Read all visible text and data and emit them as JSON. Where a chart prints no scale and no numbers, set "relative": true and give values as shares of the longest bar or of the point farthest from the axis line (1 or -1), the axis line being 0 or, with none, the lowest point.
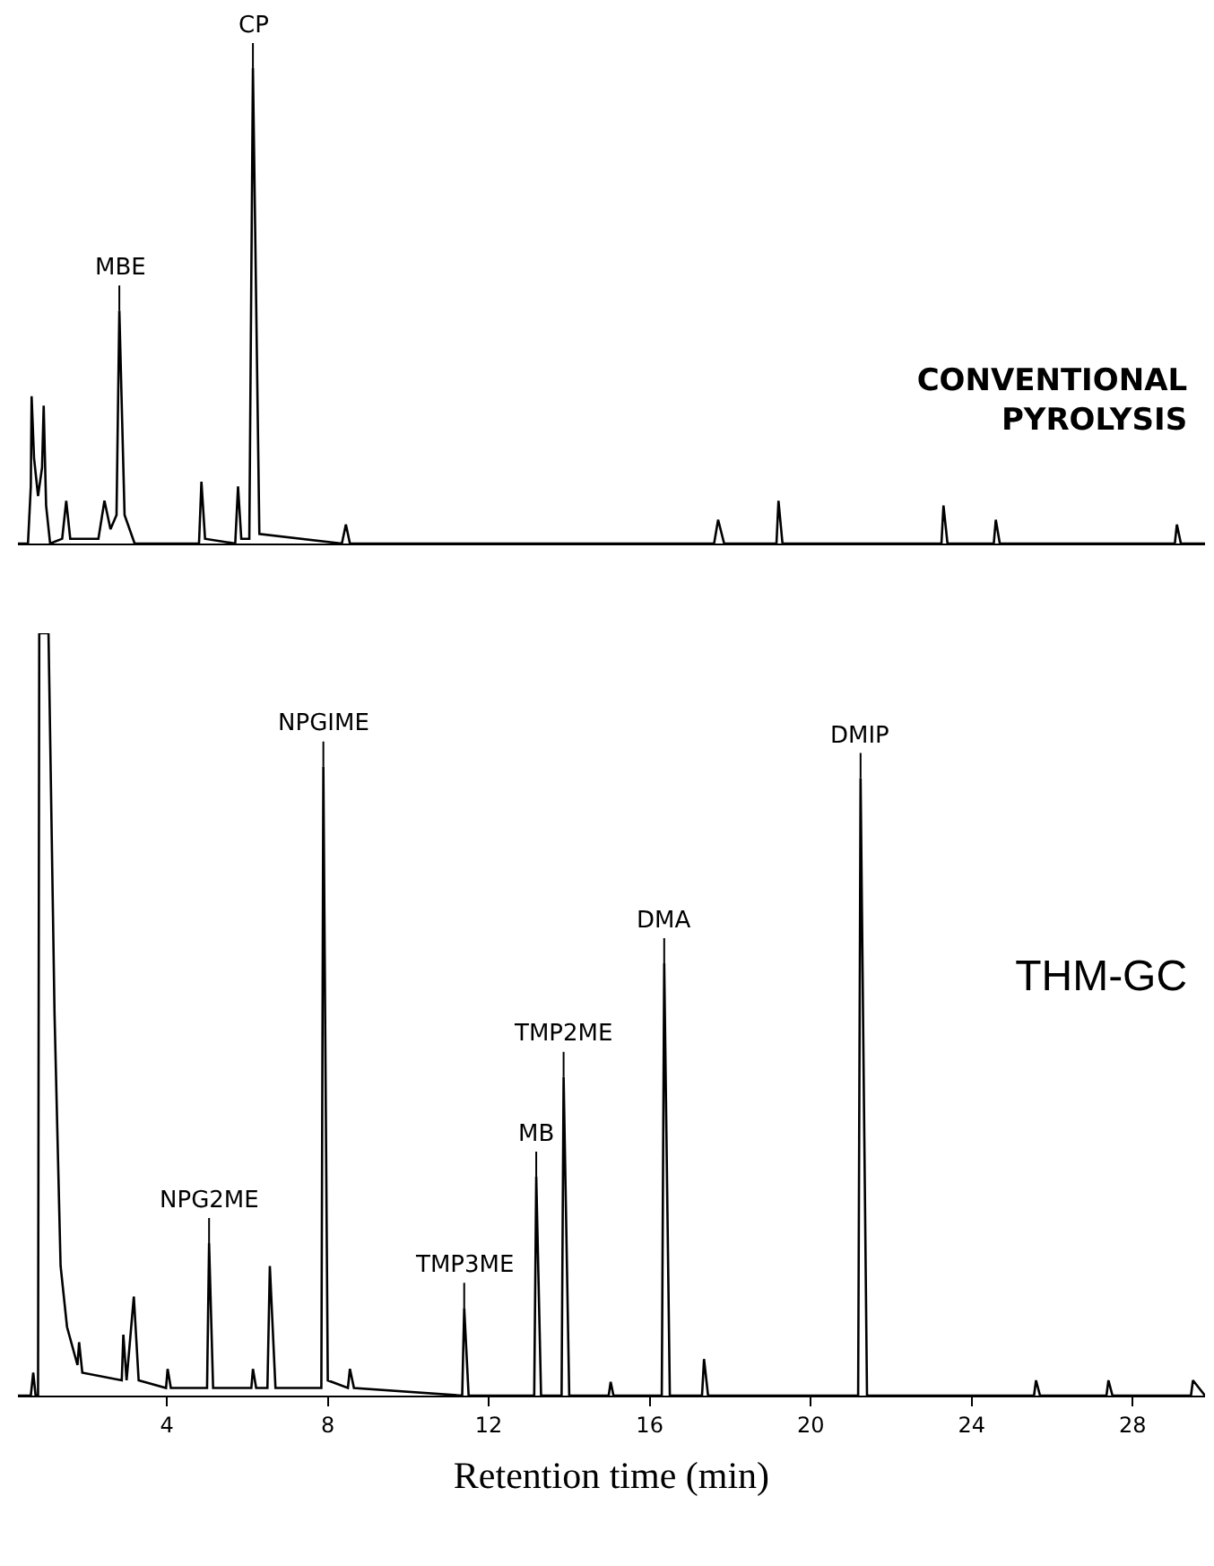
{
  "chart_data": [
    {
      "type": "line",
      "title": "CONVENTIONAL\nPYROLYSIS",
      "relative": true,
      "tick_labels": false,
      "grid": false,
      "marker": "none",
      "line_style": "solid",
      "xlim": [
        0.3,
        29.8
      ],
      "x": [
        0.3,
        0.55,
        0.62,
        0.64,
        0.7,
        0.8,
        0.9,
        0.94,
        1.0,
        1.1,
        1.4,
        1.5,
        1.6,
        2.3,
        2.45,
        2.6,
        2.75,
        2.82,
        2.95,
        3.2,
        4.8,
        4.86,
        4.95,
        5.7,
        5.77,
        5.85,
        6.05,
        6.14,
        6.3,
        8.35,
        8.45,
        8.55,
        17.6,
        17.7,
        17.85,
        19.15,
        19.2,
        19.3,
        23.25,
        23.3,
        23.4,
        24.55,
        24.6,
        24.7,
        29.05,
        29.1,
        29.2,
        29.8
      ],
      "series": [
        {
          "color": "#000000",
          "values": [
            0,
            0,
            0.12,
            0.31,
            0.18,
            0.1,
            0.16,
            0.29,
            0.08,
            0,
            0.01,
            0.09,
            0.01,
            0.01,
            0.09,
            0.03,
            0.06,
            0.49,
            0.06,
            0,
            0,
            0.13,
            0.01,
            0,
            0.12,
            0.01,
            0.01,
            1,
            0.02,
            0,
            0.04,
            0,
            0,
            0.05,
            0,
            0,
            0.09,
            0,
            0,
            0.08,
            0,
            0,
            0.05,
            0,
            0,
            0.04,
            0,
            0
          ]
        }
      ],
      "annotations": [
        {
          "text": "MBE",
          "x": 2.82,
          "y": 0.49
        },
        {
          "text": "CP",
          "x": 6.14,
          "y": 1
        }
      ]
    },
    {
      "type": "line",
      "title": "THM-GC",
      "xlabel": "Retention time (min)",
      "relative": true,
      "grid": false,
      "marker": "none",
      "line_style": "solid",
      "xlim": [
        0.3,
        29.8
      ],
      "xticks": [
        4,
        8,
        12,
        16,
        20,
        24,
        28
      ],
      "x": [
        0.3,
        0.62,
        0.68,
        0.74,
        0.8,
        0.83,
        1.06,
        1.21,
        1.36,
        1.52,
        1.78,
        1.82,
        1.9,
        2.88,
        2.92,
        3.0,
        3.18,
        3.3,
        3.98,
        4.02,
        4.1,
        5.0,
        5.05,
        5.15,
        6.1,
        6.14,
        6.22,
        6.5,
        6.56,
        6.7,
        7.84,
        7.89,
        8.0,
        8.5,
        8.55,
        8.65,
        11.34,
        11.39,
        11.5,
        13.13,
        13.18,
        13.3,
        13.81,
        13.86,
        14.0,
        14.98,
        15.03,
        15.1,
        16.3,
        16.36,
        16.5,
        17.3,
        17.35,
        17.45,
        21.18,
        21.24,
        21.4,
        25.55,
        25.6,
        25.7,
        27.35,
        27.4,
        27.5,
        29.45,
        29.5,
        29.8
      ],
      "series": [
        {
          "color": "#000000",
          "values": [
            0,
            0,
            0.03,
            0,
            0,
            1,
            1,
            0.5,
            0.17,
            0.09,
            0.04,
            0.07,
            0.03,
            0.02,
            0.08,
            0.02,
            0.13,
            0.02,
            0.01,
            0.035,
            0.01,
            0.01,
            0.2,
            0.01,
            0.01,
            0.035,
            0.01,
            0.01,
            0.17,
            0.01,
            0.01,
            0.825,
            0.02,
            0.01,
            0.035,
            0.01,
            0,
            0.115,
            0,
            0,
            0.287,
            0,
            0,
            0.418,
            0,
            0,
            0.018,
            0,
            0,
            0.567,
            0,
            0,
            0.048,
            0,
            0,
            0.81,
            0,
            0,
            0.02,
            0,
            0,
            0.02,
            0,
            0,
            0.02,
            0
          ]
        }
      ],
      "annotations": [
        {
          "text": "NPG2ME",
          "x": 5.05,
          "y": 0.2
        },
        {
          "text": "NPGIME",
          "x": 7.89,
          "y": 0.825
        },
        {
          "text": "TMP3ME",
          "x": 11.39,
          "y": 0.115
        },
        {
          "text": "MB",
          "x": 13.18,
          "y": 0.287
        },
        {
          "text": "TMP2ME",
          "x": 13.86,
          "y": 0.418
        },
        {
          "text": "DMA",
          "x": 16.36,
          "y": 0.567
        },
        {
          "text": "DMIP",
          "x": 21.24,
          "y": 0.81
        }
      ]
    }
  ]
}
